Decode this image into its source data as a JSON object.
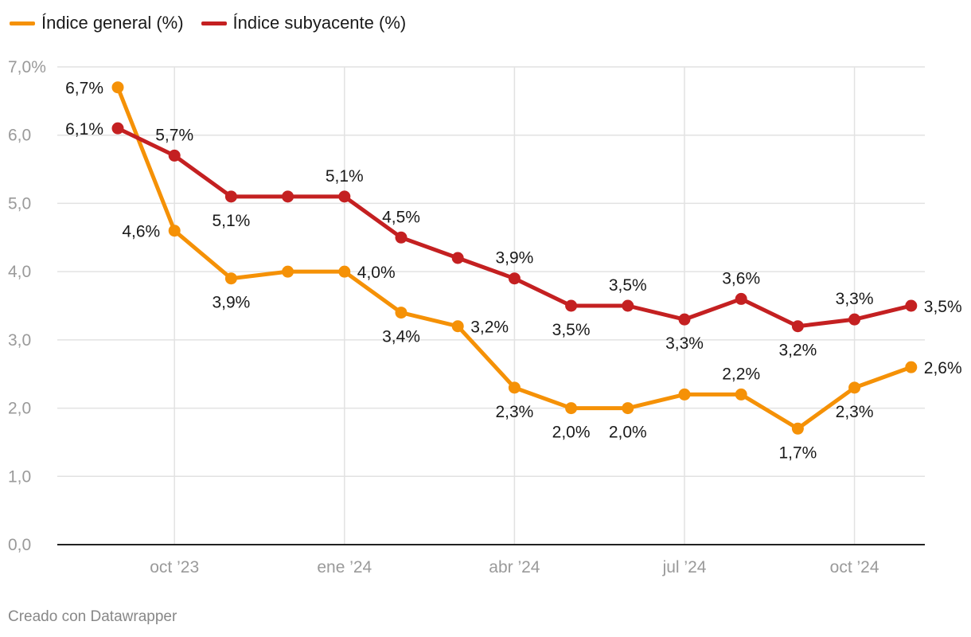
{
  "legend": {
    "general_label": "Índice general (%)",
    "subyacente_label": "Índice subyacente (%)"
  },
  "footer": {
    "credit": "Creado con Datawrapper"
  },
  "colors": {
    "general": "#f59106",
    "subyacente": "#c42021",
    "grid": "#e2e2e2",
    "axis": "#222222",
    "tick_text": "#9a9a9a",
    "label_text": "#1a1a1a"
  },
  "chart_data": {
    "type": "line",
    "x": [
      "2023-09",
      "2023-10",
      "2023-11",
      "2023-12",
      "2024-01",
      "2024-02",
      "2024-03",
      "2024-04",
      "2024-05",
      "2024-06",
      "2024-07",
      "2024-08",
      "2024-09",
      "2024-10",
      "2024-11"
    ],
    "x_ticks": [
      {
        "x": "2023-10",
        "label": "oct ’23"
      },
      {
        "x": "2024-01",
        "label": "ene ’24"
      },
      {
        "x": "2024-04",
        "label": "abr ’24"
      },
      {
        "x": "2024-07",
        "label": "jul ’24"
      },
      {
        "x": "2024-10",
        "label": "oct ’24"
      }
    ],
    "y_ticks": [
      {
        "value": 0,
        "label": "0,0"
      },
      {
        "value": 1,
        "label": "1,0"
      },
      {
        "value": 2,
        "label": "2,0"
      },
      {
        "value": 3,
        "label": "3,0"
      },
      {
        "value": 4,
        "label": "4,0"
      },
      {
        "value": 5,
        "label": "5,0"
      },
      {
        "value": 6,
        "label": "6,0"
      },
      {
        "value": 7,
        "label": "7,0%"
      }
    ],
    "ylim": [
      0,
      7
    ],
    "grid": true,
    "legend_position": "top-left",
    "series": [
      {
        "name": "Índice general (%)",
        "values": [
          6.7,
          4.6,
          3.9,
          4.0,
          4.0,
          3.4,
          3.2,
          2.3,
          2.0,
          2.0,
          2.2,
          2.2,
          1.7,
          2.3,
          2.6
        ],
        "labels": [
          "6,7%",
          "4,6%",
          "3,9%",
          "",
          "4,0%",
          "3,4%",
          "3,2%",
          "2,3%",
          "2,0%",
          "2,0%",
          "",
          "2,2%",
          "1,7%",
          "2,3%",
          "2,6%"
        ]
      },
      {
        "name": "Índice subyacente (%)",
        "values": [
          6.1,
          5.7,
          5.1,
          5.1,
          5.1,
          4.5,
          4.2,
          3.9,
          3.5,
          3.5,
          3.3,
          3.6,
          3.2,
          3.3,
          3.5
        ],
        "labels": [
          "6,1%",
          "5,7%",
          "5,1%",
          "",
          "5,1%",
          "4,5%",
          "",
          "3,9%",
          "3,5%",
          "3,5%",
          "3,3%",
          "3,6%",
          "3,2%",
          "3,3%",
          "3,5%"
        ]
      }
    ]
  }
}
